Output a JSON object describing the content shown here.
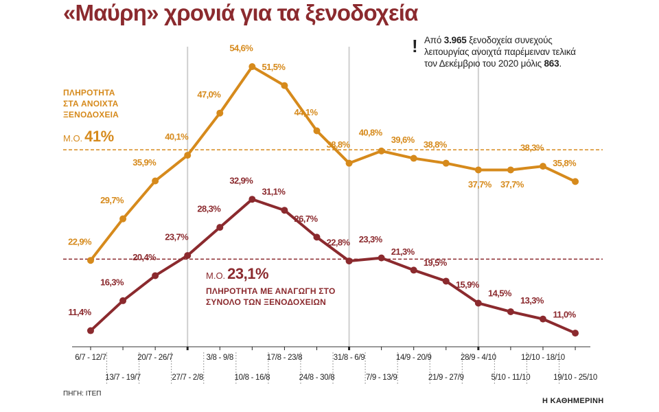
{
  "chart_data": {
    "type": "line",
    "title": "«Μαύρη» χρονιά για τα ξενοδοχεία",
    "note": [
      "Από ",
      "3.965",
      " ξενοδοχεία συνεχούς λειτουργίας ανοιχτά παρέμειναν τελικά τον Δεκέμβριο του 2020 μόλις ",
      "863",
      "."
    ],
    "categories": [
      "6/7 - 12/7",
      "13/7 - 19/7",
      "20/7 - 26/7",
      "27/7 - 2/8",
      "3/8 - 9/8",
      "10/8 - 16/8",
      "17/8 - 23/8",
      "24/8 - 30/8",
      "31/8 - 6/9",
      "7/9 - 13/9",
      "14/9 - 20/9",
      "21/9 - 27/9",
      "28/9 - 4/10",
      "5/10 - 11/10",
      "12/10 - 18/10",
      "19/10 - 25/10"
    ],
    "series": [
      {
        "name": "ΠΛΗΡΟΤΗΤΑ ΣΤΑ ΑΝΟΙΧΤΑ ΞΕΝΟΔΟΧΕΙΑ",
        "color": "#d68a1c",
        "values": [
          22.9,
          29.7,
          35.9,
          40.1,
          47.0,
          54.6,
          51.5,
          44.1,
          38.8,
          40.8,
          39.6,
          38.8,
          37.7,
          37.7,
          38.3,
          35.8
        ],
        "value_labels": [
          "22,9%",
          "29,7%",
          "35,9%",
          "40,1%",
          "47,0%",
          "54,6%",
          "51,5%",
          "44,1%",
          "38,8%",
          "40,8%",
          "39,6%",
          "38,8%",
          "37,7%",
          "37,7%",
          "38,3%",
          "35,8%"
        ]
      },
      {
        "name": "ΠΛΗΡΟΤΗΤΑ ΜΕ ΑΝΑΓΩΓΗ ΣΤΟ ΣΥΝΟΛΟ ΤΩΝ ΞΕΝΟΔΟΧΕΙΩΝ",
        "color": "#8b2a2e",
        "values": [
          11.4,
          16.3,
          20.4,
          23.7,
          28.3,
          32.9,
          31.1,
          26.7,
          22.8,
          23.3,
          21.3,
          19.5,
          15.9,
          14.5,
          13.3,
          11.0
        ],
        "value_labels": [
          "11,4%",
          "16,3%",
          "20,4%",
          "23,7%",
          "28,3%",
          "32,9%",
          "31,1%",
          "26,7%",
          "22,8%",
          "23,3%",
          "21,3%",
          "19,5%",
          "15,9%",
          "14,5%",
          "13,3%",
          "11,0%"
        ]
      }
    ],
    "reference_lines": [
      {
        "value": 41,
        "prefix": "Μ.Ο.",
        "label": "41%",
        "color": "#d68a1c"
      },
      {
        "value": 23.1,
        "prefix": "Μ.Ο.",
        "label": "23,1%",
        "color": "#8b2a2e"
      }
    ],
    "source": "ΠΗΓΗ: ΙΤΕΠ",
    "credit": "Η ΚΑΘΗΜΕΡΙΝΗ"
  }
}
